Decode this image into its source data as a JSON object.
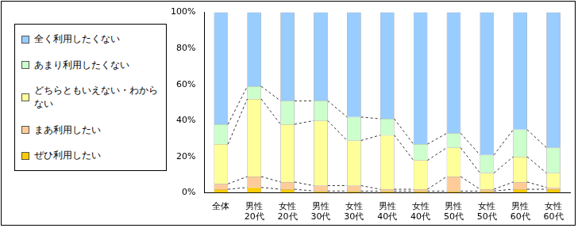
{
  "chart_data": {
    "type": "bar",
    "stacked": true,
    "grid": false,
    "legend": "left",
    "categories": [
      [
        "全体"
      ],
      [
        "男性",
        "20代"
      ],
      [
        "女性",
        "20代"
      ],
      [
        "男性",
        "30代"
      ],
      [
        "女性",
        "30代"
      ],
      [
        "男性",
        "40代"
      ],
      [
        "女性",
        "40代"
      ],
      [
        "男性",
        "50代"
      ],
      [
        "女性",
        "50代"
      ],
      [
        "男性",
        "60代"
      ],
      [
        "女性",
        "60代"
      ]
    ],
    "series": [
      {
        "name": "ぜひ利用したい",
        "color": "#FFCC00",
        "values": [
          2,
          3,
          2,
          1,
          1,
          1,
          1,
          1,
          1,
          2,
          2
        ]
      },
      {
        "name": "まあ利用したい",
        "color": "#FFCC99",
        "values": [
          3,
          6,
          4,
          3,
          3,
          1,
          1,
          8,
          1,
          4,
          1
        ]
      },
      {
        "name": "どちらともいえない・わからない",
        "color": "#FFFF99",
        "values": [
          22,
          43,
          32,
          36,
          25,
          30,
          16,
          16,
          9,
          14,
          8
        ]
      },
      {
        "name": "あまり利用したくない",
        "color": "#CCFFCC",
        "values": [
          11,
          7,
          13,
          11,
          13,
          9,
          9,
          8,
          10,
          15,
          14
        ]
      },
      {
        "name": "全く利用したくない",
        "color": "#99CCFF",
        "values": [
          62,
          41,
          49,
          49,
          58,
          59,
          73,
          67,
          79,
          65,
          75
        ]
      }
    ],
    "ylim": [
      0,
      100
    ],
    "yticks": [
      {
        "value": 0,
        "label": "0%"
      },
      {
        "value": 20,
        "label": "20%"
      },
      {
        "value": 40,
        "label": "40%"
      },
      {
        "value": 60,
        "label": "60%"
      },
      {
        "value": 80,
        "label": "80%"
      },
      {
        "value": 100,
        "label": "100%"
      }
    ]
  }
}
